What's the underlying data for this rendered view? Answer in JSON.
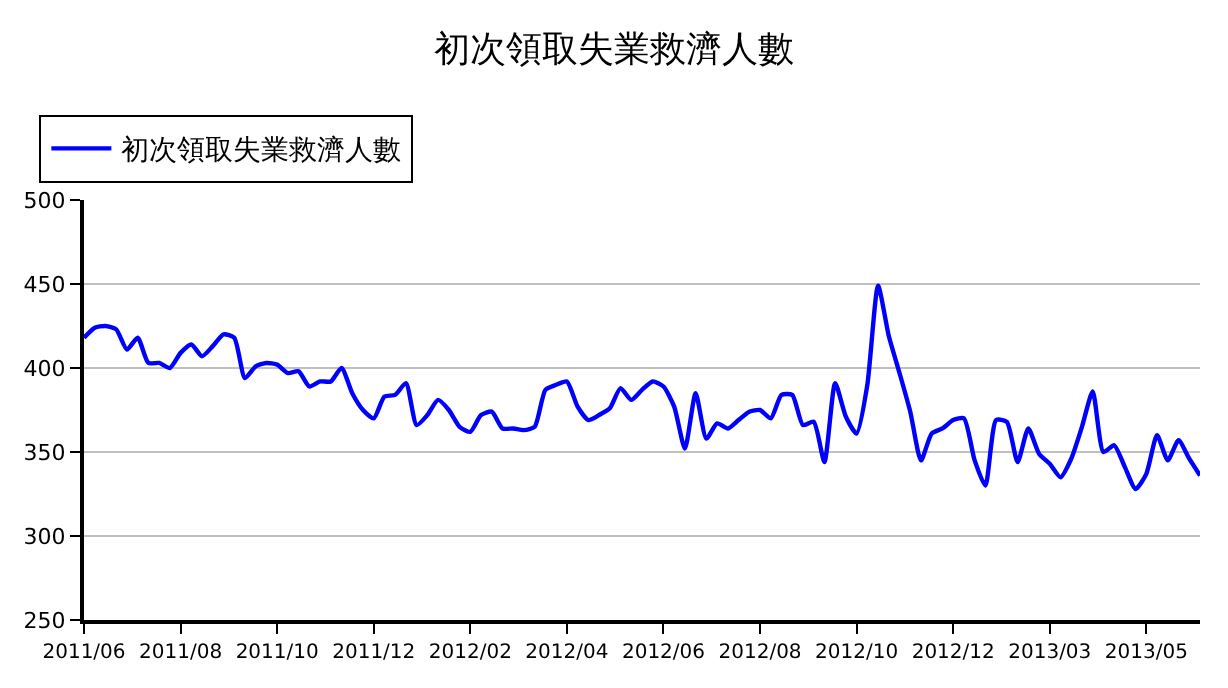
{
  "chart_data": {
    "type": "line",
    "title": "初次領取失業救濟人數",
    "categories": [
      "2011/06",
      null,
      null,
      null,
      null,
      null,
      null,
      null,
      null,
      "2011/08",
      null,
      null,
      null,
      null,
      null,
      null,
      null,
      null,
      "2011/10",
      null,
      null,
      null,
      null,
      null,
      null,
      null,
      null,
      "2011/12",
      null,
      null,
      null,
      null,
      null,
      null,
      null,
      null,
      "2012/02",
      null,
      null,
      null,
      null,
      null,
      null,
      null,
      null,
      "2012/04",
      null,
      null,
      null,
      null,
      null,
      null,
      null,
      null,
      "2012/06",
      null,
      null,
      null,
      null,
      null,
      null,
      null,
      null,
      "2012/08",
      null,
      null,
      null,
      null,
      null,
      null,
      null,
      null,
      "2012/10",
      null,
      null,
      null,
      null,
      null,
      null,
      null,
      null,
      "2012/12",
      null,
      null,
      null,
      null,
      null,
      null,
      null,
      null,
      "2013/03",
      null,
      null,
      null,
      null,
      null,
      null,
      null,
      null,
      "2013/05",
      null,
      null,
      null,
      null,
      null
    ],
    "series": [
      {
        "name": "初次領取失業救濟人數",
        "color": "#0000ff",
        "values": [
          418,
          424,
          425,
          423,
          411,
          418,
          403,
          403,
          400,
          409,
          414,
          407,
          413,
          420,
          418,
          394,
          401,
          403,
          402,
          397,
          398,
          389,
          392,
          392,
          400,
          385,
          375,
          370,
          383,
          384,
          391,
          366,
          372,
          381,
          375,
          365,
          362,
          372,
          374,
          364,
          364,
          363,
          365,
          387,
          390,
          392,
          377,
          369,
          372,
          376,
          388,
          381,
          387,
          392,
          389,
          377,
          352,
          385,
          358,
          367,
          364,
          369,
          374,
          375,
          370,
          384,
          384,
          366,
          368,
          344,
          391,
          371,
          361,
          390,
          449,
          419,
          397,
          374,
          345,
          361,
          364,
          369,
          370,
          345,
          330,
          369,
          368,
          344,
          364,
          349,
          343,
          335,
          346,
          365,
          386,
          350,
          354,
          341,
          328,
          337,
          360,
          345,
          357,
          346,
          336
        ]
      }
    ],
    "ylim": [
      250,
      500
    ],
    "yticks": [
      250,
      300,
      350,
      400,
      450,
      500
    ],
    "grid": "y",
    "legend": "top left",
    "marker": "none",
    "line_style": "solid"
  }
}
